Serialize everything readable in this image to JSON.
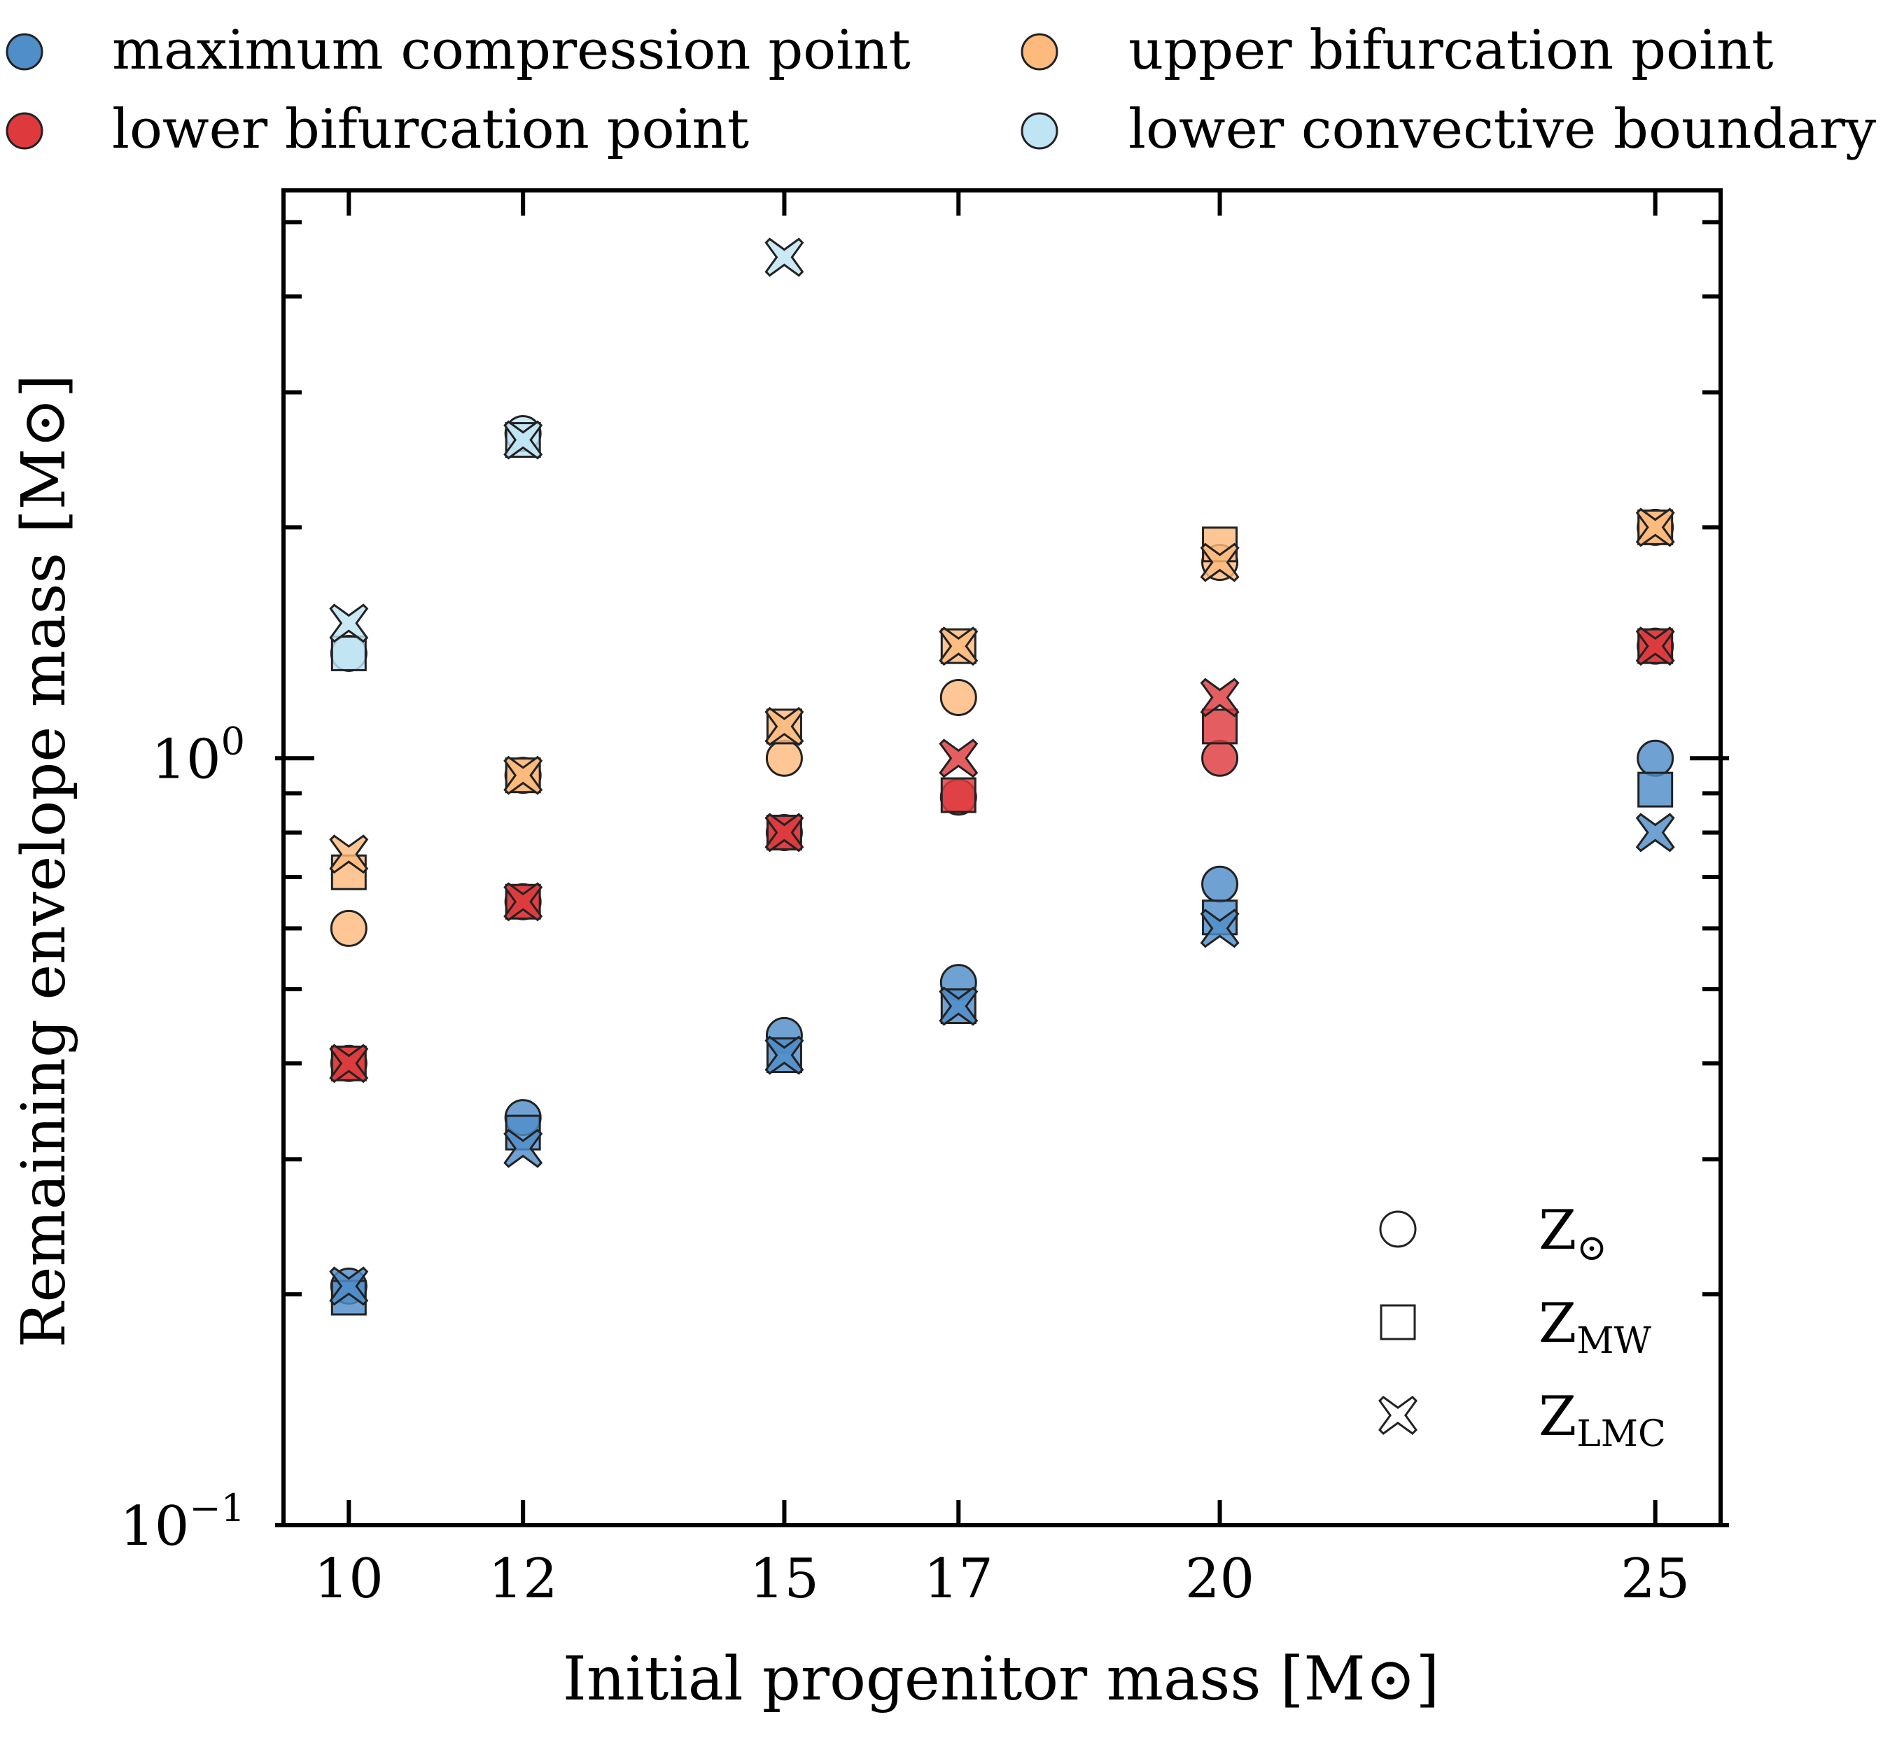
{
  "chart_data": {
    "type": "scatter",
    "xlabel": "Initial progenitor mass [M⊙]",
    "ylabel": "Remaining envelope mass [M⊙]",
    "x_scale": "linear",
    "y_scale": "log",
    "xlim": [
      9.25,
      25.75
    ],
    "ylim": [
      0.1,
      5.5
    ],
    "x_ticks": [
      10,
      12,
      15,
      17,
      20,
      25
    ],
    "x_tick_labels": [
      "10",
      "12",
      "15",
      "17",
      "20",
      "25"
    ],
    "y_major_ticks": [
      {
        "value": 0.1,
        "base": "10",
        "exp": "−1"
      },
      {
        "value": 1,
        "base": "10",
        "exp": "0"
      }
    ],
    "grid": false,
    "legend_position": "top, above plot",
    "series": [
      {
        "name": "maximum compression point",
        "color": "#4f8ec8",
        "points": [
          {
            "x": 10,
            "Zsun": 0.205,
            "ZMW": 0.198,
            "ZLMC": 0.205
          },
          {
            "x": 12,
            "Zsun": 0.34,
            "ZMW": 0.325,
            "ZLMC": 0.31
          },
          {
            "x": 15,
            "Zsun": 0.435,
            "ZMW": 0.41,
            "ZLMC": 0.41
          },
          {
            "x": 17,
            "Zsun": 0.51,
            "ZMW": 0.475,
            "ZLMC": 0.475
          },
          {
            "x": 20,
            "Zsun": 0.685,
            "ZMW": 0.62,
            "ZLMC": 0.6
          },
          {
            "x": 25,
            "Zsun": 1.0,
            "ZMW": 0.91,
            "ZLMC": 0.8
          }
        ]
      },
      {
        "name": "lower bifurcation point",
        "color": "#de3a3e",
        "points": [
          {
            "x": 10,
            "Zsun": 0.4,
            "ZMW": 0.4,
            "ZLMC": 0.4
          },
          {
            "x": 12,
            "Zsun": 0.65,
            "ZMW": 0.65,
            "ZLMC": 0.65
          },
          {
            "x": 15,
            "Zsun": 0.8,
            "ZMW": 0.8,
            "ZLMC": 0.8
          },
          {
            "x": 17,
            "Zsun": 0.89,
            "ZMW": 0.895,
            "ZLMC": 1.0
          },
          {
            "x": 20,
            "Zsun": 1.0,
            "ZMW": 1.1,
            "ZLMC": 1.2
          },
          {
            "x": 25,
            "Zsun": 1.4,
            "ZMW": 1.4,
            "ZLMC": 1.4
          }
        ]
      },
      {
        "name": "upper bifurcation point",
        "color": "#fdba7c",
        "points": [
          {
            "x": 10,
            "Zsun": 0.6,
            "ZMW": 0.71,
            "ZLMC": 0.75
          },
          {
            "x": 12,
            "Zsun": 0.95,
            "ZMW": 0.95,
            "ZLMC": 0.95
          },
          {
            "x": 15,
            "Zsun": 1.0,
            "ZMW": 1.1,
            "ZLMC": 1.1
          },
          {
            "x": 17,
            "Zsun": 1.2,
            "ZMW": 1.4,
            "ZLMC": 1.4
          },
          {
            "x": 20,
            "Zsun": 1.8,
            "ZMW": 1.9,
            "ZLMC": 1.8
          },
          {
            "x": 25,
            "Zsun": 2.0,
            "ZMW": 2.0,
            "ZLMC": 2.0
          }
        ]
      },
      {
        "name": "lower convective boundary",
        "color": "#bfe4f3",
        "points": [
          {
            "x": 10,
            "Zsun": 1.37,
            "ZMW": 1.37,
            "ZLMC": 1.5
          },
          {
            "x": 12,
            "Zsun": 2.65,
            "ZMW": 2.6,
            "ZLMC": 2.6
          },
          {
            "x": 15,
            "ZLMC": 4.5
          }
        ]
      }
    ],
    "series_legend": [
      {
        "name": "maximum compression point",
        "color": "#4f8ec8"
      },
      {
        "name": "upper bifurcation point",
        "color": "#fdba7c"
      },
      {
        "name": "lower bifurcation point",
        "color": "#de3a3e"
      },
      {
        "name": "lower convective boundary",
        "color": "#bfe4f3"
      }
    ],
    "marker_legend": [
      {
        "key": "Zsun",
        "marker": "circle",
        "base": "Z",
        "sub": "⊙"
      },
      {
        "key": "ZMW",
        "marker": "square",
        "base": "Z",
        "sub": "MW"
      },
      {
        "key": "ZLMC",
        "marker": "cross",
        "base": "Z",
        "sub": "LMC"
      }
    ]
  }
}
